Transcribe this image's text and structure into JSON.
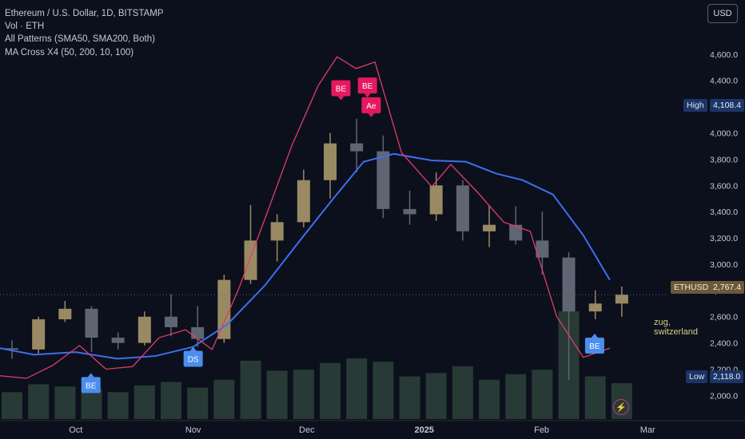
{
  "legend": {
    "title": "Ethereum / U.S. Dollar, 1D, BITSTAMP",
    "line2": "Vol · ETH",
    "line3": "All Patterns (SMA50, SMA200, Both)",
    "line4": "MA Cross X4 (50, 200, 10, 100)"
  },
  "currency_button": "USD",
  "tags": {
    "high_label": "High",
    "high_value": "4,108.4",
    "low_label": "Low",
    "low_value": "2,118.0",
    "symbol": "ETHUSD",
    "last_price": "2,767.4"
  },
  "note": {
    "line1": "zug,",
    "line2": "switzerland"
  },
  "colors": {
    "background": "#0c101c",
    "candle_up": "#9a8a63",
    "candle_down": "#5f6572",
    "ma_blue": "#3d6ef0",
    "ma_pink": "#e23d6a",
    "marker_pink": "#e5195f",
    "marker_blue": "#4a8ef0",
    "volume": "#3f5c4a"
  },
  "chart_data": {
    "type": "candlestick",
    "title": "Ethereum / U.S. Dollar, 1D, BITSTAMP",
    "x_tick_labels": [
      "Oct",
      "Nov",
      "Dec",
      "2025",
      "Feb",
      "Mar"
    ],
    "x_tick_dates": [
      "2024-10-01",
      "2024-11-01",
      "2024-12-01",
      "2025-01-01",
      "2025-02-01",
      "2025-03-01"
    ],
    "x_range": [
      "2024-09-11",
      "2025-03-02"
    ],
    "y_ticks": [
      2000,
      2200,
      2400,
      2600,
      2800,
      3000,
      3200,
      3400,
      3600,
      3800,
      4000,
      4200,
      4400,
      4600
    ],
    "y_tick_labels": [
      "2,000.0",
      "2,200.0",
      "2,400.0",
      "2,600.0",
      "2,800.0",
      "3,000.0",
      "3,200.0",
      "3,400.0",
      "3,600.0",
      "3,800.0",
      "4,000.0",
      "4,200.0",
      "4,400.0",
      "4,600.0"
    ],
    "ylim": [
      1820,
      4830
    ],
    "grid": false,
    "price_high": 4108.4,
    "price_low": 2118.0,
    "last_price": 2767.4,
    "ohlc_weekly": [
      {
        "date": "2024-09-11",
        "o": 2360,
        "h": 2420,
        "l": 2280,
        "c": 2350
      },
      {
        "date": "2024-09-18",
        "o": 2350,
        "h": 2600,
        "l": 2320,
        "c": 2580
      },
      {
        "date": "2024-09-25",
        "o": 2580,
        "h": 2720,
        "l": 2560,
        "c": 2660
      },
      {
        "date": "2024-10-02",
        "o": 2660,
        "h": 2680,
        "l": 2330,
        "c": 2440
      },
      {
        "date": "2024-10-09",
        "o": 2440,
        "h": 2480,
        "l": 2350,
        "c": 2400
      },
      {
        "date": "2024-10-16",
        "o": 2400,
        "h": 2640,
        "l": 2380,
        "c": 2600
      },
      {
        "date": "2024-10-23",
        "o": 2600,
        "h": 2770,
        "l": 2450,
        "c": 2520
      },
      {
        "date": "2024-10-30",
        "o": 2520,
        "h": 2680,
        "l": 2370,
        "c": 2430
      },
      {
        "date": "2024-11-06",
        "o": 2430,
        "h": 2920,
        "l": 2400,
        "c": 2880
      },
      {
        "date": "2024-11-13",
        "o": 2880,
        "h": 3450,
        "l": 2850,
        "c": 3180
      },
      {
        "date": "2024-11-20",
        "o": 3180,
        "h": 3380,
        "l": 3020,
        "c": 3320
      },
      {
        "date": "2024-11-27",
        "o": 3320,
        "h": 3720,
        "l": 3280,
        "c": 3640
      },
      {
        "date": "2024-12-04",
        "o": 3640,
        "h": 4000,
        "l": 3500,
        "c": 3920
      },
      {
        "date": "2024-12-11",
        "o": 3920,
        "h": 4108,
        "l": 3700,
        "c": 3860
      },
      {
        "date": "2024-12-18",
        "o": 3860,
        "h": 3980,
        "l": 3350,
        "c": 3420
      },
      {
        "date": "2024-12-25",
        "o": 3420,
        "h": 3560,
        "l": 3300,
        "c": 3380
      },
      {
        "date": "2025-01-01",
        "o": 3380,
        "h": 3700,
        "l": 3330,
        "c": 3600
      },
      {
        "date": "2025-01-08",
        "o": 3600,
        "h": 3640,
        "l": 3180,
        "c": 3250
      },
      {
        "date": "2025-01-15",
        "o": 3250,
        "h": 3450,
        "l": 3130,
        "c": 3300
      },
      {
        "date": "2025-01-22",
        "o": 3300,
        "h": 3440,
        "l": 3150,
        "c": 3180
      },
      {
        "date": "2025-01-29",
        "o": 3180,
        "h": 3400,
        "l": 2920,
        "c": 3050
      },
      {
        "date": "2025-02-05",
        "o": 3050,
        "h": 3090,
        "l": 2118,
        "c": 2640
      },
      {
        "date": "2025-02-12",
        "o": 2640,
        "h": 2800,
        "l": 2580,
        "c": 2700
      },
      {
        "date": "2025-02-19",
        "o": 2700,
        "h": 2830,
        "l": 2600,
        "c": 2767.4
      }
    ],
    "series": [
      {
        "color": "#3d6ef0",
        "x": [
          "2024-09-11",
          "2024-09-20",
          "2024-10-01",
          "2024-10-12",
          "2024-10-22",
          "2024-11-01",
          "2024-11-10",
          "2024-11-20",
          "2024-11-30",
          "2024-12-08",
          "2024-12-16",
          "2024-12-24",
          "2025-01-03",
          "2025-01-12",
          "2025-01-20",
          "2025-01-27",
          "2025-02-04",
          "2025-02-12",
          "2025-02-19"
        ],
        "values": [
          2360,
          2310,
          2330,
          2280,
          2300,
          2370,
          2540,
          2840,
          3210,
          3500,
          3780,
          3840,
          3790,
          3780,
          3690,
          3640,
          3530,
          3220,
          2880
        ]
      },
      {
        "color": "#e23d6a",
        "x": [
          "2024-09-11",
          "2024-09-18",
          "2024-09-25",
          "2024-10-02",
          "2024-10-09",
          "2024-10-16",
          "2024-10-23",
          "2024-10-30",
          "2024-11-06",
          "2024-11-13",
          "2024-11-20",
          "2024-11-27",
          "2024-12-04",
          "2024-12-09",
          "2024-12-14",
          "2024-12-19",
          "2024-12-26",
          "2025-01-03",
          "2025-01-08",
          "2025-01-15",
          "2025-01-22",
          "2025-01-29",
          "2025-02-05",
          "2025-02-12",
          "2025-02-19"
        ],
        "values": [
          2150,
          2130,
          2230,
          2380,
          2200,
          2220,
          2440,
          2500,
          2350,
          2810,
          3350,
          3900,
          4360,
          4580,
          4490,
          4540,
          3850,
          3590,
          3760,
          3550,
          3320,
          3250,
          2600,
          2290,
          2360
        ]
      }
    ],
    "volume_weekly": [
      24000,
      31000,
      29000,
      27000,
      24000,
      30000,
      33000,
      28000,
      35000,
      52000,
      43000,
      44000,
      50000,
      54000,
      51000,
      38000,
      41000,
      47000,
      35000,
      40000,
      44000,
      96000,
      38000,
      32000
    ],
    "markers": [
      {
        "label": "BE",
        "date": "2024-10-05",
        "price": 2140,
        "color": "#4a8ef0",
        "dir": "up"
      },
      {
        "label": "DS",
        "date": "2024-11-01",
        "price": 2340,
        "color": "#4a8ef0",
        "dir": "up"
      },
      {
        "label": "BE",
        "date": "2024-12-10",
        "price": 4280,
        "color": "#e5195f",
        "dir": "down"
      },
      {
        "label": "BE",
        "date": "2024-12-17",
        "price": 4300,
        "color": "#e5195f",
        "dir": "down"
      },
      {
        "label": "Ae",
        "date": "2024-12-18",
        "price": 4150,
        "color": "#e5195f",
        "dir": "down"
      },
      {
        "label": "BE",
        "date": "2025-02-15",
        "price": 2440,
        "color": "#4a8ef0",
        "dir": "up"
      }
    ]
  }
}
